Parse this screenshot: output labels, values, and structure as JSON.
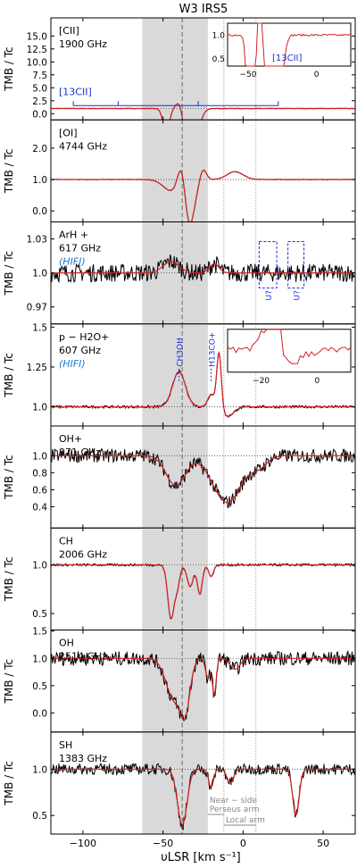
{
  "chart_data": {
    "type": "line",
    "title": "W3 IRS5",
    "xlabel": "υLSR [km s⁻¹]",
    "xlim": [
      -120,
      70
    ],
    "xticks": [
      -100,
      -50,
      0,
      50
    ],
    "shaded_band": [
      -63,
      -22
    ],
    "vlines_dashed": [
      -38
    ],
    "vlines_dotted": [
      -12,
      8
    ],
    "colors": {
      "data": "#000000",
      "model": "#d62020",
      "annot": "#1530d8",
      "shade": "#d9d9d9",
      "guide": "#888888"
    },
    "panels": [
      {
        "label": "[CII]",
        "freq": "1900 GHz",
        "ylabel": "TMB / Tc",
        "ylim": [
          -1.2,
          18.5
        ],
        "yticks": [
          0.0,
          2.5,
          5.0,
          7.5,
          10.0,
          12.5,
          15.0
        ],
        "baseline": 1.0,
        "noise": 0.05,
        "features": [
          {
            "v": -48,
            "depth": -4.5,
            "width": 2
          },
          {
            "v": -39,
            "depth": 3.2,
            "width": 2.5
          },
          {
            "v": -33,
            "depth": -10.5,
            "width": 4
          }
        ],
        "c13_label": "[13CII]",
        "c13_ticks": [
          -106,
          -78,
          -28,
          22
        ],
        "inset": {
          "xlim": [
            -65,
            25
          ],
          "ylim": [
            0.35,
            1.25
          ],
          "xticks": [
            -50,
            0
          ],
          "yticks": [
            0.5,
            1.0
          ],
          "label": "[13CII]"
        }
      },
      {
        "label": "[OI]",
        "freq": "4744 GHz",
        "ylabel": "TMB / Tc",
        "ylim": [
          -0.35,
          2.9
        ],
        "yticks": [
          0.0,
          1.0,
          2.0
        ],
        "baseline": 1.0,
        "noise": 0.01,
        "features": [
          {
            "v": -45,
            "depth": -0.35,
            "width": 5
          },
          {
            "v": -38,
            "depth": 1.1,
            "width": 2.5
          },
          {
            "v": -34,
            "depth": -1.6,
            "width": 3.5
          },
          {
            "v": -25,
            "depth": 0.35,
            "width": 2
          },
          {
            "v": -5,
            "depth": 0.25,
            "width": 5
          }
        ]
      },
      {
        "label": "ArH +",
        "freq": "617 GHz",
        "sublabel": "(HIFI)",
        "ylabel": "TMB / Tc",
        "ylim": [
          0.955,
          1.045
        ],
        "yticks": [
          0.97,
          1.0,
          1.03
        ],
        "baseline": 1.0,
        "noise": 0.008,
        "features": [
          {
            "v": -45,
            "depth": 0.01,
            "width": 5
          },
          {
            "v": -18,
            "depth": 0.008,
            "width": 3
          }
        ],
        "unknown_boxes": [
          {
            "x": [
              10,
              21
            ],
            "label": "U?"
          },
          {
            "x": [
              28,
              38
            ],
            "label": "U?"
          }
        ]
      },
      {
        "label": "p − H2O+",
        "freq": "607 GHz",
        "sublabel": "(HIFI)",
        "ylabel": "TMB / Tc",
        "ylim": [
          0.88,
          1.52
        ],
        "yticks": [
          1.0,
          1.25,
          1.5
        ],
        "baseline": 1.0,
        "noise": 0.008,
        "features": [
          {
            "v": -40,
            "depth": 0.22,
            "width": 4
          },
          {
            "v": -20,
            "depth": 0.08,
            "width": 2
          },
          {
            "v": -15,
            "depth": 0.36,
            "width": 1.5
          },
          {
            "v": -10,
            "depth": -0.06,
            "width": 4
          }
        ],
        "line_marks": [
          {
            "v": -40,
            "label": "CH3OH"
          },
          {
            "v": -20,
            "label": "H13CO+"
          }
        ],
        "inset": {
          "xlim": [
            -32,
            12
          ],
          "ylim": [
            0.9,
            1.1
          ],
          "xticks": [
            -20,
            0
          ],
          "yticks": []
        }
      },
      {
        "label": "OH+",
        "freq": "971 GHz",
        "ylabel": "TMB / Tc",
        "ylim": [
          0.15,
          1.35
        ],
        "yticks": [
          0.4,
          0.6,
          0.8,
          1.0
        ],
        "baseline": 1.0,
        "noise": 0.08,
        "features": [
          {
            "v": -42,
            "depth": -0.35,
            "width": 6
          },
          {
            "v": -10,
            "depth": -0.55,
            "width": 9
          },
          {
            "v": 10,
            "depth": -0.12,
            "width": 5
          }
        ]
      },
      {
        "label": "CH",
        "freq": "2006 GHz",
        "ylabel": "TMB / Tc",
        "ylim": [
          0.33,
          1.38
        ],
        "yticks": [
          0.5,
          1.0
        ],
        "baseline": 1.0,
        "noise": 0.012,
        "features": [
          {
            "v": -45,
            "depth": -0.55,
            "width": 2
          },
          {
            "v": -41,
            "depth": -0.2,
            "width": 1.5
          },
          {
            "v": -33,
            "depth": -0.22,
            "width": 2
          },
          {
            "v": -27,
            "depth": -0.3,
            "width": 1.5
          },
          {
            "v": -20,
            "depth": -0.12,
            "width": 1.5
          }
        ]
      },
      {
        "label": "OH",
        "freq": "2514 GHz",
        "ylabel": "TMB / Tc",
        "ylim": [
          -0.35,
          1.52
        ],
        "yticks": [
          0.0,
          0.5,
          1.0,
          1.5
        ],
        "baseline": 1.0,
        "noise": 0.13,
        "features": [
          {
            "v": -43,
            "depth": -0.75,
            "width": 5
          },
          {
            "v": -36,
            "depth": -0.8,
            "width": 3
          },
          {
            "v": -22,
            "depth": -0.35,
            "width": 1.5
          },
          {
            "v": -18,
            "depth": -0.65,
            "width": 1.2
          },
          {
            "v": -5,
            "depth": -0.2,
            "width": 3
          }
        ]
      },
      {
        "label": "SH",
        "freq": "1383 GHz",
        "ylabel": "TMB / Tc",
        "ylim": [
          0.3,
          1.4
        ],
        "yticks": [
          0.5,
          1.0
        ],
        "baseline": 1.0,
        "noise": 0.06,
        "features": [
          {
            "v": -38,
            "depth": -0.6,
            "width": 3
          },
          {
            "v": -20,
            "depth": -0.2,
            "width": 1.5
          },
          {
            "v": -8,
            "depth": -0.15,
            "width": 2
          },
          {
            "v": 33,
            "depth": -0.5,
            "width": 2
          }
        ],
        "arms": [
          {
            "label": "Near − side",
            "label2": "Perseus arm",
            "x": [
              -22,
              -12
            ]
          },
          {
            "label": "Local arm",
            "x": [
              -12,
              8
            ]
          }
        ]
      }
    ]
  }
}
